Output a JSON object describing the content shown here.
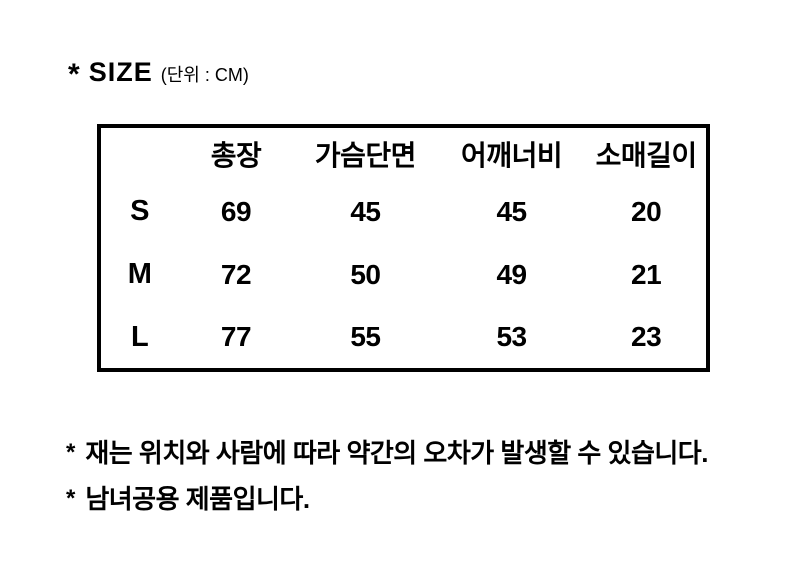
{
  "page": {
    "background_color": "#ffffff",
    "text_color": "#000000"
  },
  "title": {
    "marker": "*",
    "label": "SIZE",
    "unit": "(단위 : CM)"
  },
  "size_table": {
    "headers": {
      "size": "",
      "length": "총장",
      "chest": "가슴단면",
      "shoulder": "어깨너비",
      "sleeve": "소매길이"
    },
    "rows": [
      {
        "size": "S",
        "length": "69",
        "chest": "45",
        "shoulder": "45",
        "sleeve": "20"
      },
      {
        "size": "M",
        "length": "72",
        "chest": "50",
        "shoulder": "49",
        "sleeve": "21"
      },
      {
        "size": "L",
        "length": "77",
        "chest": "55",
        "shoulder": "53",
        "sleeve": "23"
      }
    ]
  },
  "notes": [
    {
      "marker": "*",
      "text": "재는 위치와 사람에 따라 약간의 오차가 발생할 수 있습니다."
    },
    {
      "marker": "*",
      "text": "남녀공용 제품입니다."
    }
  ]
}
